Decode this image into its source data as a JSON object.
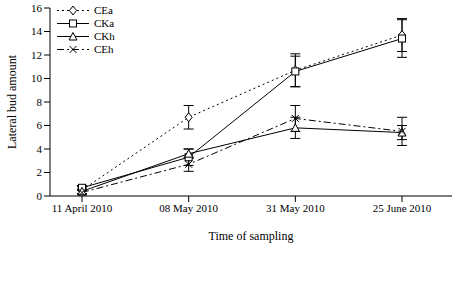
{
  "chart_data": {
    "type": "line",
    "x_label": "Time of sampling",
    "y_label": "Lateral bud amount",
    "categories": [
      "11 April 2010",
      "08 May 2010",
      "31 May 2010",
      "25 June 2010"
    ],
    "ylim": [
      0,
      16
    ],
    "yticks": [
      0,
      2,
      4,
      6,
      8,
      10,
      12,
      14,
      16
    ],
    "grid": false,
    "legend": "upper left",
    "series": [
      {
        "name": "CEa",
        "color": "#000000",
        "marker": "diamond",
        "line_style": "dotted",
        "values": [
          0.5,
          6.7,
          10.7,
          13.7
        ],
        "errors": [
          0.3,
          1.0,
          1.4,
          1.4
        ]
      },
      {
        "name": "CKa",
        "color": "#000000",
        "marker": "square",
        "line_style": "solid",
        "values": [
          0.7,
          3.3,
          10.6,
          13.4
        ],
        "errors": [
          0.2,
          0.7,
          1.3,
          1.6
        ]
      },
      {
        "name": "CKh",
        "color": "#000000",
        "marker": "triangle",
        "line_style": "solid",
        "values": [
          0.4,
          3.6,
          5.8,
          5.4
        ],
        "errors": [
          0.2,
          0.4,
          0.9,
          0.6
        ]
      },
      {
        "name": "CEh",
        "color": "#000000",
        "marker": "x",
        "line_style": "dashdot",
        "values": [
          0.3,
          2.7,
          6.6,
          5.5
        ],
        "errors": [
          0.2,
          0.6,
          1.1,
          1.2
        ]
      }
    ]
  }
}
